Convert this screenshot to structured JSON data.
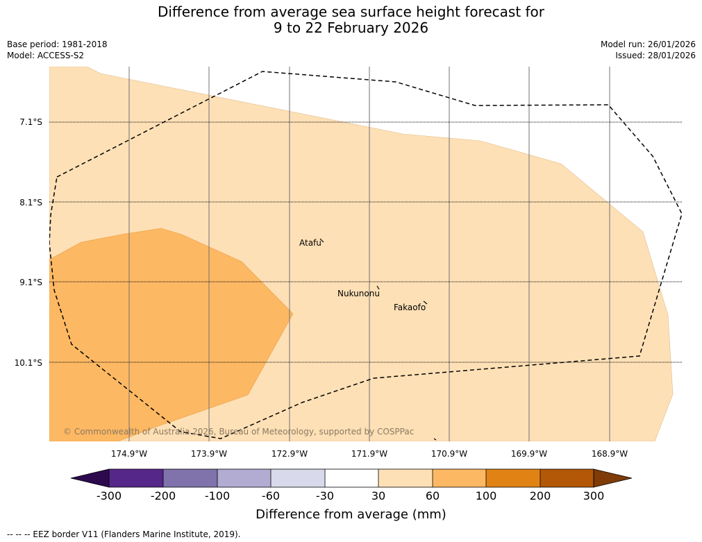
{
  "title_line1": "Difference from average sea surface height forecast for",
  "title_line2": "9 to 22 February 2026",
  "base_period": "Base period: 1981-2018",
  "model": "Model: ACCESS-S2",
  "model_run": "Model run: 26/01/2026",
  "issued": "Issued: 28/01/2026",
  "lat_labels": [
    "7.1°S",
    "8.1°S",
    "9.1°S",
    "10.1°S"
  ],
  "lon_labels": [
    "174.9°W",
    "173.9°W",
    "172.9°W",
    "171.9°W",
    "170.9°W",
    "169.9°W",
    "168.9°W"
  ],
  "places": [
    "Atafu",
    "Nukunonu",
    "Fakaofo"
  ],
  "copyright": "© Commonwealth of Australia 2026, Bureau of Meteorology, supported by COSPPac",
  "colorbar": {
    "ticks": [
      "-300",
      "-200",
      "-100",
      "-60",
      "-30",
      "30",
      "60",
      "100",
      "200",
      "300"
    ],
    "colors": [
      "#2d0a4e",
      "#542788",
      "#8073ac",
      "#b2abd2",
      "#d8daeb",
      "#ffffff",
      "#fee0b6",
      "#fdb863",
      "#e08214",
      "#b35806",
      "#7f3b08"
    ],
    "label": "Difference from average (mm)"
  },
  "fill_colors": {
    "light": "#fee0b6",
    "medium": "#fdb863"
  },
  "footer": "--  --  -- EEZ border V11 (Flanders Marine Institute, 2019)."
}
